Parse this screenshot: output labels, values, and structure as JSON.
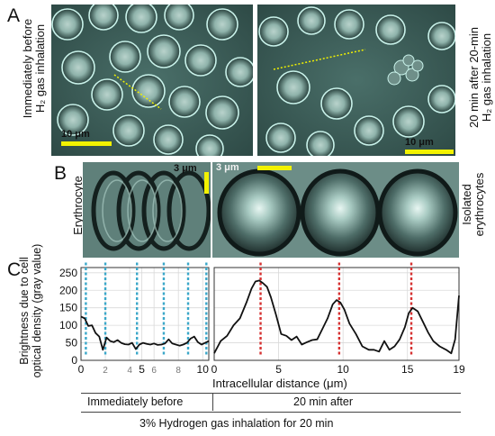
{
  "panels": {
    "A": {
      "label": "A",
      "left_caption_line1": "Immediately before",
      "left_caption_line2": "H₂ gas inhalation",
      "right_caption_line1": "20 min after 20-min",
      "right_caption_line2": "H₂ gas inhalation",
      "scale_left": "10 μm",
      "scale_right": "10 μm"
    },
    "B": {
      "label": "B",
      "left_caption_line1": "Erythrocyte",
      "left_caption_line2": "aggregate",
      "right_caption_line1": "Isolated",
      "right_caption_line2": "erythrocytes",
      "scale_left": "3 μm",
      "scale_right": "3 μm"
    },
    "C": {
      "label": "C"
    }
  },
  "chart_data": {
    "type": "line",
    "ylabel_line1": "Brightness due to cell",
    "ylabel_line2": "optical density (gray value)",
    "xlabel": "Intracellular distance (μm)",
    "y_ticks": [
      "0",
      "50",
      "100",
      "150",
      "200",
      "250"
    ],
    "ylim": [
      0,
      265
    ],
    "left": {
      "xlim": [
        0,
        10.5
      ],
      "x_ticks": [
        "0",
        "5",
        "10"
      ],
      "x_tick_values": [
        0,
        5,
        10
      ],
      "x_minor_ticks": [
        "2",
        "4",
        "6",
        "8"
      ],
      "x_minor_tick_values": [
        2,
        4,
        6,
        8
      ],
      "dashed_markers_x": [
        0.4,
        2.0,
        4.6,
        6.8,
        8.8,
        10.3
      ],
      "marker_color": "#3aa7c9",
      "series": {
        "x": [
          0,
          0.3,
          0.6,
          0.9,
          1.2,
          1.5,
          1.8,
          2.1,
          2.4,
          2.7,
          3.0,
          3.3,
          3.6,
          3.9,
          4.2,
          4.5,
          4.8,
          5.1,
          5.4,
          5.7,
          6.0,
          6.3,
          6.6,
          6.9,
          7.2,
          7.5,
          7.8,
          8.1,
          8.4,
          8.7,
          9.0,
          9.3,
          9.6,
          9.9,
          10.2,
          10.5
        ],
        "y": [
          125,
          120,
          98,
          100,
          78,
          68,
          30,
          65,
          55,
          52,
          58,
          50,
          46,
          45,
          50,
          32,
          45,
          50,
          47,
          45,
          48,
          44,
          45,
          48,
          60,
          48,
          45,
          42,
          45,
          50,
          62,
          68,
          52,
          45,
          50,
          55
        ]
      }
    },
    "right": {
      "xlim": [
        0,
        19
      ],
      "x_ticks": [
        "0",
        "5",
        "10",
        "15",
        "19"
      ],
      "x_tick_values": [
        0,
        5,
        10,
        15,
        19
      ],
      "dashed_markers_x": [
        3.6,
        9.7,
        15.3
      ],
      "marker_color": "#d63131",
      "series": {
        "x": [
          0,
          0.5,
          1.0,
          1.5,
          2.0,
          2.5,
          2.9,
          3.2,
          3.5,
          3.8,
          4.1,
          4.4,
          4.8,
          5.2,
          5.6,
          6.0,
          6.4,
          6.8,
          7.2,
          7.6,
          8.0,
          8.4,
          8.8,
          9.2,
          9.5,
          9.8,
          10.1,
          10.5,
          11.0,
          11.5,
          12.0,
          12.4,
          12.8,
          13.2,
          13.6,
          14.0,
          14.4,
          14.8,
          15.1,
          15.4,
          15.8,
          16.2,
          16.6,
          17.0,
          17.5,
          18.0,
          18.4,
          18.7,
          19.0
        ],
        "y": [
          20,
          55,
          70,
          100,
          120,
          165,
          205,
          225,
          228,
          220,
          210,
          180,
          130,
          75,
          70,
          58,
          68,
          45,
          52,
          58,
          60,
          90,
          120,
          160,
          172,
          165,
          145,
          105,
          75,
          40,
          30,
          30,
          25,
          55,
          30,
          40,
          60,
          95,
          135,
          150,
          140,
          110,
          80,
          55,
          40,
          30,
          20,
          60,
          185
        ]
      }
    }
  },
  "footer": {
    "left_label": "Immediately before",
    "right_label": "20 min after",
    "bottom_label": "3% Hydrogen gas inhalation for 20 min"
  }
}
